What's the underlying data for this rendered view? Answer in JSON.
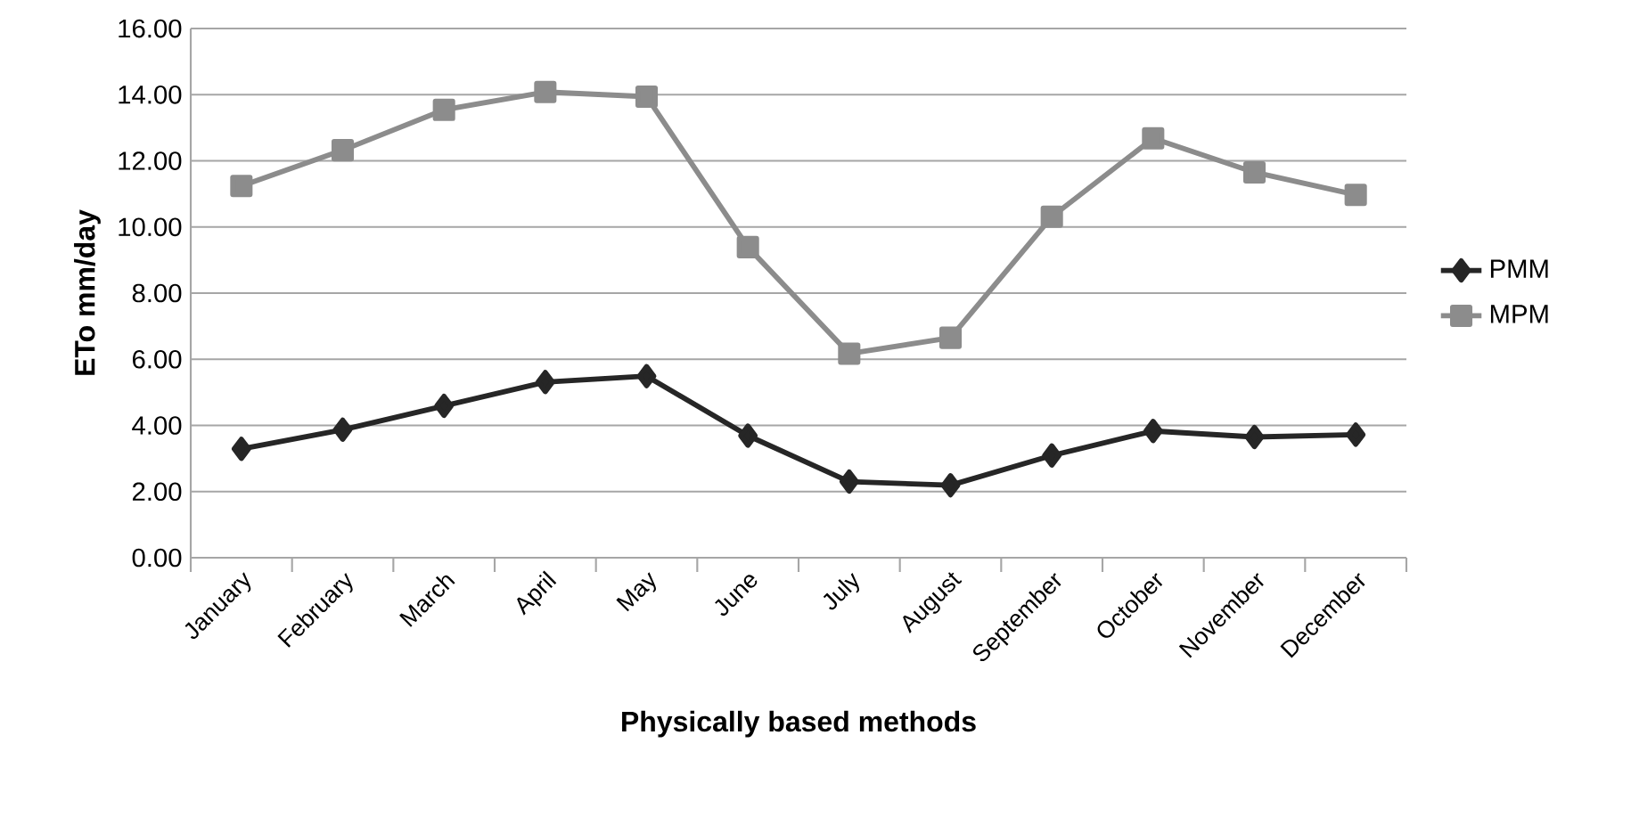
{
  "chart_data": {
    "type": "line",
    "xlabel": "Physically based methods",
    "ylabel": "ETo mm/day",
    "categories": [
      "January",
      "February",
      "March",
      "April",
      "May",
      "June",
      "July",
      "August",
      "September",
      "October",
      "November",
      "December"
    ],
    "series": [
      {
        "name": "PMM",
        "color": "#262626",
        "marker": "diamond",
        "values": [
          3.29,
          3.87,
          4.59,
          5.31,
          5.49,
          3.69,
          2.3,
          2.19,
          3.09,
          3.83,
          3.65,
          3.72
        ]
      },
      {
        "name": "MPM",
        "color": "#8c8c8c",
        "marker": "square",
        "values": [
          11.24,
          12.32,
          13.54,
          14.08,
          13.94,
          9.39,
          6.17,
          6.65,
          10.31,
          12.68,
          11.65,
          10.97
        ]
      }
    ],
    "ylim": [
      0,
      16
    ],
    "yticks": [
      {
        "value": 0,
        "label": "0.00"
      },
      {
        "value": 2,
        "label": "2.00"
      },
      {
        "value": 4,
        "label": "4.00"
      },
      {
        "value": 6,
        "label": "6.00"
      },
      {
        "value": 8,
        "label": "8.00"
      },
      {
        "value": 10,
        "label": "10.00"
      },
      {
        "value": 12,
        "label": "12.00"
      },
      {
        "value": 14,
        "label": "14.00"
      },
      {
        "value": 16,
        "label": "16.00"
      }
    ],
    "grid": "y",
    "legend": "right"
  }
}
